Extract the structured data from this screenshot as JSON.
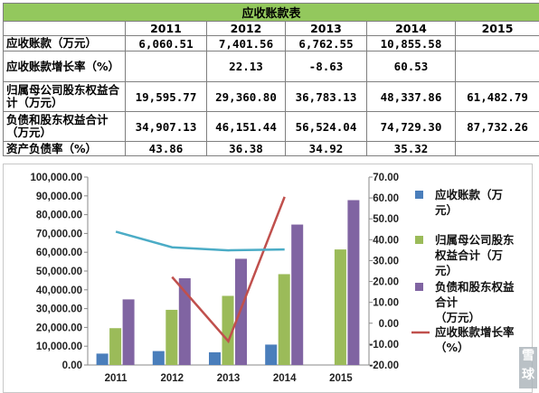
{
  "table": {
    "title": "应收账款表",
    "years": [
      "2011",
      "2012",
      "2013",
      "2014",
      "2015"
    ],
    "rows": [
      {
        "label": "应收账款（万元）",
        "cells": [
          "6,060.51",
          "7,401.56",
          "6,762.55",
          "10,855.58",
          ""
        ]
      },
      {
        "label": "应收账款增长率（%）",
        "cells": [
          "",
          "22.13",
          "-8.63",
          "60.53",
          ""
        ]
      },
      {
        "label": "归属母公司股东权益合计（万元）",
        "cells": [
          "19,595.77",
          "29,360.80",
          "36,783.13",
          "48,337.86",
          "61,482.79"
        ]
      },
      {
        "label": "负债和股东权益合计（万元）",
        "cells": [
          "34,907.13",
          "46,151.44",
          "56,524.04",
          "74,729.30",
          "87,732.26"
        ]
      },
      {
        "label": "资产负债率（%）",
        "cells": [
          "43.86",
          "36.38",
          "34.92",
          "35.32",
          ""
        ]
      }
    ]
  },
  "colors": {
    "title_bg": "#93c85d",
    "highlight_bg": "#fde9e3",
    "receivable": "#4a7ebb",
    "equity": "#9bbb59",
    "total": "#8064a2",
    "growth_line": "#c0504d",
    "debt_ratio_line": "#4bacc6"
  },
  "watermark": "雪球",
  "chart_data": {
    "type": "bar",
    "categories": [
      "2011",
      "2012",
      "2013",
      "2014",
      "2015"
    ],
    "series": [
      {
        "name": "应收账款（万元）",
        "type": "bar",
        "axis": "left",
        "values": [
          6060.51,
          7401.56,
          6762.55,
          10855.58,
          null
        ]
      },
      {
        "name": "归属母公司股东权益合计（万元）",
        "type": "bar",
        "axis": "left",
        "values": [
          19595.77,
          29360.8,
          36783.13,
          48337.86,
          61482.79
        ]
      },
      {
        "name": "负债和股东权益合计（万元）",
        "type": "bar",
        "axis": "left",
        "values": [
          34907.13,
          46151.44,
          56524.04,
          74729.3,
          87732.26
        ]
      },
      {
        "name": "应收账款增长率（%）",
        "type": "line",
        "axis": "right",
        "values": [
          null,
          22.13,
          -8.63,
          60.53,
          null
        ]
      },
      {
        "type": "line",
        "axis": "right",
        "values": [
          43.86,
          36.38,
          34.92,
          35.32,
          null
        ]
      }
    ],
    "ylim_left": [
      0,
      100000
    ],
    "ylim_right": [
      -20,
      70
    ],
    "yticks_left": [
      "0.00",
      "10,000.00",
      "20,000.00",
      "30,000.00",
      "40,000.00",
      "50,000.00",
      "60,000.00",
      "70,000.00",
      "80,000.00",
      "90,000.00",
      "100,000.00"
    ],
    "yticks_right": [
      "-20.00",
      "-10.00",
      "0.00",
      "10.00",
      "20.00",
      "30.00",
      "40.00",
      "50.00",
      "60.00",
      "70.00"
    ],
    "legend": [
      {
        "lines": [
          "应收账款（万",
          "元）"
        ],
        "series": 0,
        "marker": "bar"
      },
      {
        "lines": [
          "归属母公司股东",
          "权益合计（万",
          "元）"
        ],
        "series": 1,
        "marker": "bar"
      },
      {
        "lines": [
          "负债和股东权益",
          "合计",
          "（万元）"
        ],
        "series": 2,
        "marker": "bar"
      },
      {
        "lines": [
          "应收账款增长率",
          "（%）"
        ],
        "series": 3,
        "marker": "line"
      }
    ],
    "legend_position": "right",
    "grid": false
  }
}
